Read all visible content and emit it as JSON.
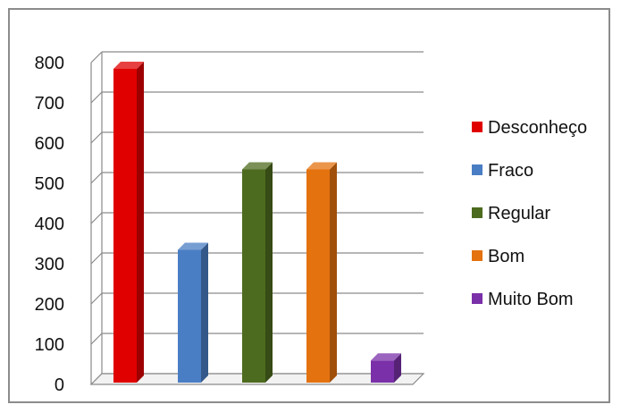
{
  "chart_data": {
    "type": "bar",
    "categories": [
      "Desconheço",
      "Fraco",
      "Regular",
      "Bom",
      "Muito Bom"
    ],
    "values": [
      780,
      330,
      530,
      530,
      55
    ],
    "colors": [
      "#e00000",
      "#4a7ec4",
      "#4d6b1e",
      "#e4720f",
      "#7a30a8"
    ],
    "ylim": [
      0,
      800
    ],
    "yticks": [
      0,
      100,
      200,
      300,
      400,
      500,
      600,
      700,
      800
    ],
    "grid": true,
    "legend_position": "right",
    "title": "",
    "xlabel": "",
    "ylabel": ""
  }
}
